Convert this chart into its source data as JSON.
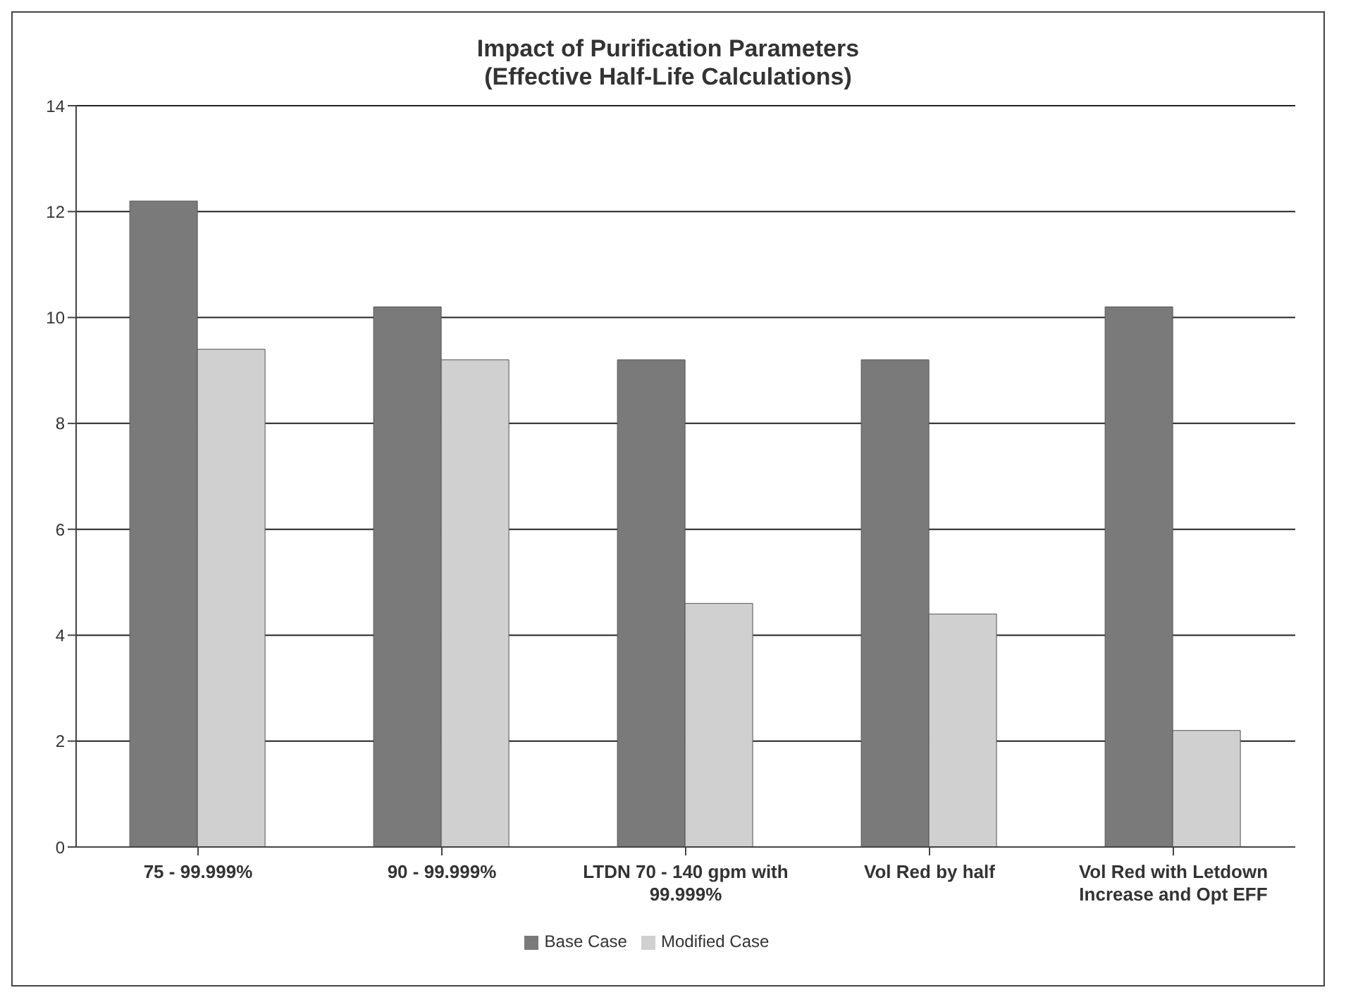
{
  "chart_data": {
    "type": "bar",
    "title": "Impact of Purification Parameters",
    "subtitle": "(Effective Half-Life Calculations)",
    "categories": [
      "75 - 99.999%",
      "90 - 99.999%",
      "LTDN 70 - 140 gpm with 99.999%",
      "Vol Red by half",
      "Vol Red with Letdown Increase and Opt EFF"
    ],
    "series": [
      {
        "name": "Base Case",
        "color": "#7a7a7a",
        "values": [
          12.2,
          10.2,
          9.2,
          9.2,
          10.2
        ]
      },
      {
        "name": "Modified Case",
        "color": "#d0d0d0",
        "values": [
          9.4,
          9.2,
          4.6,
          4.4,
          2.2
        ]
      }
    ],
    "ylim": [
      0,
      14
    ],
    "yticks": [
      0,
      2,
      4,
      6,
      8,
      10,
      12,
      14
    ],
    "grid": "y",
    "legend": "bottom"
  }
}
